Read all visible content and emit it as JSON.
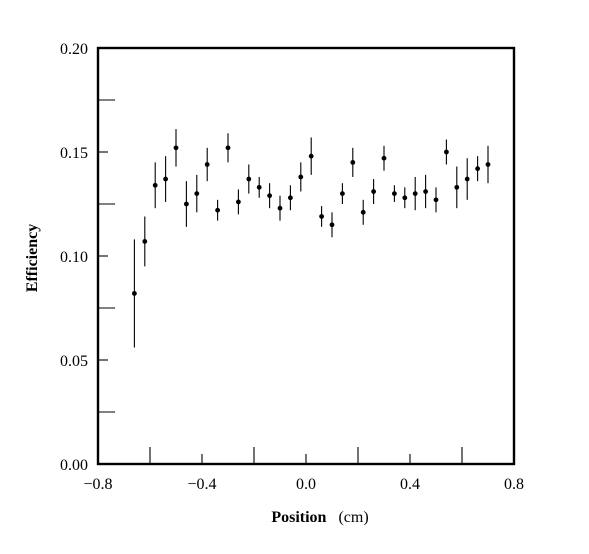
{
  "chart_data": {
    "type": "scatter",
    "title": "",
    "xlabel": "Position",
    "xlabel_unit": "(cm)",
    "ylabel": "Efficiency",
    "xlim": [
      -0.8,
      0.8
    ],
    "ylim": [
      0.0,
      0.2
    ],
    "xticks": [
      -0.8,
      -0.4,
      0.0,
      0.4,
      0.8
    ],
    "xtick_labels": [
      "−0.8",
      "−0.4",
      "0.0",
      "0.4",
      "0.8"
    ],
    "yticks": [
      0.0,
      0.05,
      0.1,
      0.15,
      0.2
    ],
    "ytick_labels": [
      "0.00",
      "0.05",
      "0.10",
      "0.15",
      "0.20"
    ],
    "grid": false,
    "error_bars": true,
    "points": [
      {
        "x": -0.66,
        "y": 0.082,
        "err": 0.026
      },
      {
        "x": -0.62,
        "y": 0.107,
        "err": 0.012
      },
      {
        "x": -0.58,
        "y": 0.134,
        "err": 0.011
      },
      {
        "x": -0.54,
        "y": 0.137,
        "err": 0.011
      },
      {
        "x": -0.5,
        "y": 0.152,
        "err": 0.009
      },
      {
        "x": -0.46,
        "y": 0.125,
        "err": 0.011
      },
      {
        "x": -0.42,
        "y": 0.13,
        "err": 0.009
      },
      {
        "x": -0.38,
        "y": 0.144,
        "err": 0.008
      },
      {
        "x": -0.34,
        "y": 0.122,
        "err": 0.005
      },
      {
        "x": -0.3,
        "y": 0.152,
        "err": 0.007
      },
      {
        "x": -0.26,
        "y": 0.126,
        "err": 0.006
      },
      {
        "x": -0.22,
        "y": 0.137,
        "err": 0.007
      },
      {
        "x": -0.18,
        "y": 0.133,
        "err": 0.005
      },
      {
        "x": -0.14,
        "y": 0.129,
        "err": 0.006
      },
      {
        "x": -0.1,
        "y": 0.123,
        "err": 0.006
      },
      {
        "x": -0.06,
        "y": 0.128,
        "err": 0.006
      },
      {
        "x": -0.02,
        "y": 0.138,
        "err": 0.007
      },
      {
        "x": 0.02,
        "y": 0.148,
        "err": 0.009
      },
      {
        "x": 0.06,
        "y": 0.119,
        "err": 0.005
      },
      {
        "x": 0.1,
        "y": 0.115,
        "err": 0.006
      },
      {
        "x": 0.14,
        "y": 0.13,
        "err": 0.005
      },
      {
        "x": 0.18,
        "y": 0.145,
        "err": 0.007
      },
      {
        "x": 0.22,
        "y": 0.121,
        "err": 0.006
      },
      {
        "x": 0.26,
        "y": 0.131,
        "err": 0.006
      },
      {
        "x": 0.3,
        "y": 0.147,
        "err": 0.006
      },
      {
        "x": 0.34,
        "y": 0.13,
        "err": 0.004
      },
      {
        "x": 0.38,
        "y": 0.128,
        "err": 0.005
      },
      {
        "x": 0.42,
        "y": 0.13,
        "err": 0.008
      },
      {
        "x": 0.46,
        "y": 0.131,
        "err": 0.008
      },
      {
        "x": 0.5,
        "y": 0.127,
        "err": 0.006
      },
      {
        "x": 0.54,
        "y": 0.15,
        "err": 0.006
      },
      {
        "x": 0.58,
        "y": 0.133,
        "err": 0.01
      },
      {
        "x": 0.62,
        "y": 0.137,
        "err": 0.01
      },
      {
        "x": 0.66,
        "y": 0.142,
        "err": 0.006
      },
      {
        "x": 0.7,
        "y": 0.144,
        "err": 0.009
      }
    ]
  }
}
